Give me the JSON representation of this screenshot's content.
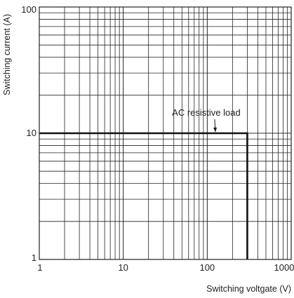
{
  "chart_data": {
    "type": "line",
    "x_scale": "log",
    "y_scale": "log",
    "xlim": [
      1,
      1000
    ],
    "ylim": [
      1,
      100
    ],
    "grid": true,
    "xlabel": "Switching voltgate (V)",
    "ylabel": "Switching current (A)",
    "x_ticks": [
      "1",
      "10",
      "100",
      "1000"
    ],
    "y_ticks": [
      "1",
      "10",
      "100"
    ],
    "series": [
      {
        "name": "AC resistive load",
        "x": [
          1,
          300,
          300
        ],
        "y": [
          10,
          10,
          1
        ]
      }
    ],
    "annotations": [
      {
        "text": "AC resistive load",
        "x": 125,
        "y": 10
      }
    ],
    "colors": {
      "line": "#111111",
      "grid": "#222222",
      "background": "#ffffff"
    }
  }
}
